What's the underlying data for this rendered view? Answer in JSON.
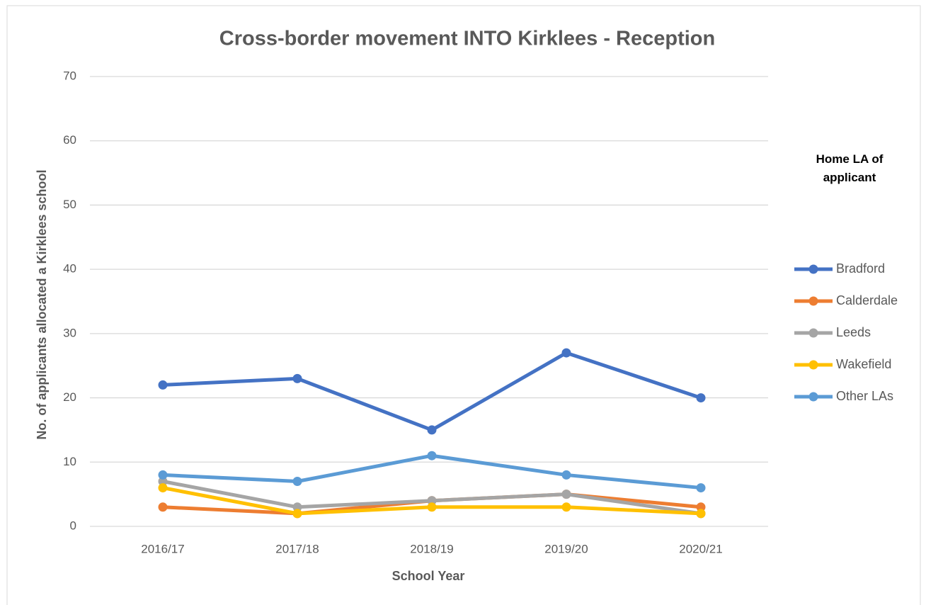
{
  "chart_data": {
    "type": "line",
    "title": "Cross-border movement INTO Kirklees - Reception",
    "x_label": "School Year",
    "y_label": "No. of applicants allocated a Kirklees school",
    "legend_title": "Home LA of applicant",
    "legend_position": "right",
    "categories": [
      "2016/17",
      "2017/18",
      "2018/19",
      "2019/20",
      "2020/21"
    ],
    "series": [
      {
        "name": "Bradford",
        "color": "#4472c4",
        "values": [
          22,
          23,
          15,
          27,
          20
        ]
      },
      {
        "name": "Calderdale",
        "color": "#ed7d31",
        "values": [
          3,
          2,
          4,
          5,
          3
        ]
      },
      {
        "name": "Leeds",
        "color": "#a5a5a5",
        "values": [
          7,
          3,
          4,
          5,
          2
        ]
      },
      {
        "name": "Wakefield",
        "color": "#ffc000",
        "values": [
          6,
          2,
          3,
          3,
          2
        ]
      },
      {
        "name": "Other LAs",
        "color": "#5b9bd5",
        "values": [
          8,
          7,
          11,
          8,
          6
        ]
      }
    ],
    "ylim": [
      0,
      70
    ],
    "yticks": [
      0,
      10,
      20,
      30,
      40,
      50,
      60,
      70
    ],
    "grid": true
  }
}
